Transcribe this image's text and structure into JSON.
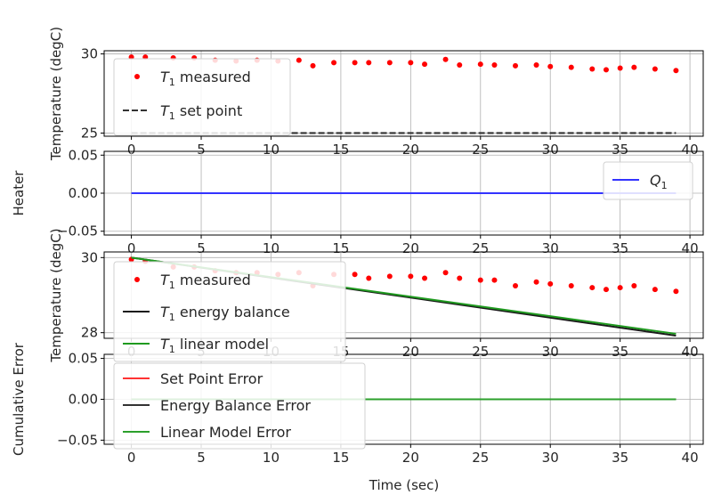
{
  "xaxis": {
    "label": "Time (sec)",
    "ticks": [
      0,
      5,
      10,
      15,
      20,
      25,
      30,
      35,
      40
    ],
    "tick_labels": [
      "0",
      "5",
      "10",
      "15",
      "20",
      "25",
      "30",
      "35",
      "40"
    ],
    "range": [
      -1.95,
      40.95
    ]
  },
  "colors": {
    "measured": "#ff0000",
    "set_point": "#333333",
    "heater": "#3333ff",
    "energy_balance": "#1a1a1a",
    "linear_model": "#1f9a1f",
    "err_setpoint": "#ff3333",
    "err_energy": "#333333",
    "err_linear": "#2ca02c"
  },
  "chart_data": [
    {
      "type": "scatter",
      "ylabel": "Temperature (degC)",
      "yticks": [
        25,
        30
      ],
      "ytick_labels": [
        "25",
        "30"
      ],
      "ylim": [
        24.8,
        30.2
      ],
      "grid": true,
      "legend": "upper-left",
      "series": [
        {
          "name": "T1 measured",
          "name_main": "T",
          "name_sub": "1",
          "name_rest": " measured",
          "style": "dots",
          "color": "#ff0000",
          "x": [
            0,
            1,
            3,
            4.5,
            6,
            7.5,
            9,
            10.5,
            12,
            13,
            14.5,
            16,
            17,
            18.5,
            20,
            21,
            22.5,
            23.5,
            25,
            26,
            27.5,
            29,
            30,
            31.5,
            33,
            34,
            35,
            36,
            37.5,
            39
          ],
          "y": [
            29.8,
            29.8,
            29.75,
            29.75,
            29.6,
            29.55,
            29.6,
            29.55,
            29.6,
            29.25,
            29.45,
            29.45,
            29.45,
            29.45,
            29.45,
            29.35,
            29.65,
            29.3,
            29.35,
            29.3,
            29.25,
            29.3,
            29.2,
            29.15,
            29.05,
            29.0,
            29.1,
            29.15,
            29.05,
            28.95
          ]
        },
        {
          "name": "T1 set point",
          "name_main": "T",
          "name_sub": "1",
          "name_rest": " set point",
          "style": "dashed",
          "color": "#333333",
          "x": [
            0,
            39
          ],
          "y": [
            25,
            25
          ]
        }
      ]
    },
    {
      "type": "line",
      "ylabel": "Heater",
      "yticks": [
        -0.05,
        0.0,
        0.05
      ],
      "ytick_labels": [
        "−0.05",
        "0.00",
        "0.05"
      ],
      "ylim": [
        -0.055,
        0.055
      ],
      "grid": true,
      "legend": "right",
      "series": [
        {
          "name": "Q1",
          "name_main": "Q",
          "name_sub": "1",
          "name_rest": "",
          "style": "solid",
          "color": "#3333ff",
          "x": [
            0,
            39
          ],
          "y": [
            0,
            0
          ]
        }
      ]
    },
    {
      "type": "line",
      "ylabel": "Temperature (degC)",
      "yticks": [
        28,
        30
      ],
      "ytick_labels": [
        "28",
        "30"
      ],
      "ylim": [
        27.85,
        30.15
      ],
      "grid": true,
      "legend": "upper-left",
      "series": [
        {
          "name": "T1 measured",
          "name_main": "T",
          "name_sub": "1",
          "name_rest": " measured",
          "style": "dots",
          "color": "#ff0000",
          "x": [
            0,
            1,
            3,
            4.5,
            6,
            7.5,
            9,
            10.5,
            12,
            13,
            14.5,
            16,
            17,
            18.5,
            20,
            21,
            22.5,
            23.5,
            25,
            26,
            27.5,
            29,
            30,
            31.5,
            33,
            34,
            35,
            36,
            37.5,
            39
          ],
          "y": [
            29.95,
            29.9,
            29.75,
            29.75,
            29.65,
            29.6,
            29.6,
            29.55,
            29.6,
            29.25,
            29.55,
            29.55,
            29.45,
            29.5,
            29.5,
            29.45,
            29.6,
            29.45,
            29.4,
            29.4,
            29.25,
            29.35,
            29.3,
            29.25,
            29.2,
            29.15,
            29.2,
            29.25,
            29.15,
            29.1
          ]
        },
        {
          "name": "T1 energy balance",
          "name_main": "T",
          "name_sub": "1",
          "name_rest": " energy balance",
          "style": "solid",
          "color": "#1a1a1a",
          "x": [
            0,
            39
          ],
          "y": [
            30.0,
            27.92
          ]
        },
        {
          "name": "T1 linear model",
          "name_main": "T",
          "name_sub": "1",
          "name_rest": " linear model",
          "style": "solid",
          "color": "#1f9a1f",
          "x": [
            0,
            39
          ],
          "y": [
            30.0,
            27.97
          ]
        }
      ]
    },
    {
      "type": "line",
      "ylabel": "Cumulative Error",
      "yticks": [
        -0.05,
        0.0,
        0.05
      ],
      "ytick_labels": [
        "−0.05",
        "0.00",
        "0.05"
      ],
      "ylim": [
        -0.055,
        0.055
      ],
      "grid": true,
      "legend": "lower-left",
      "series": [
        {
          "name": "Set Point Error",
          "name_main": "Set Point Error",
          "name_sub": "",
          "name_rest": "",
          "style": "solid",
          "color": "#ff3333",
          "x": [
            0,
            39
          ],
          "y": [
            0,
            0
          ]
        },
        {
          "name": "Energy Balance Error",
          "name_main": "Energy Balance Error",
          "name_sub": "",
          "name_rest": "",
          "style": "solid",
          "color": "#333333",
          "x": [
            0,
            39
          ],
          "y": [
            0,
            0
          ]
        },
        {
          "name": "Linear Model Error",
          "name_main": "Linear Model Error",
          "name_sub": "",
          "name_rest": "",
          "style": "solid",
          "color": "#2ca02c",
          "x": [
            0,
            39
          ],
          "y": [
            0,
            0
          ]
        }
      ]
    }
  ]
}
